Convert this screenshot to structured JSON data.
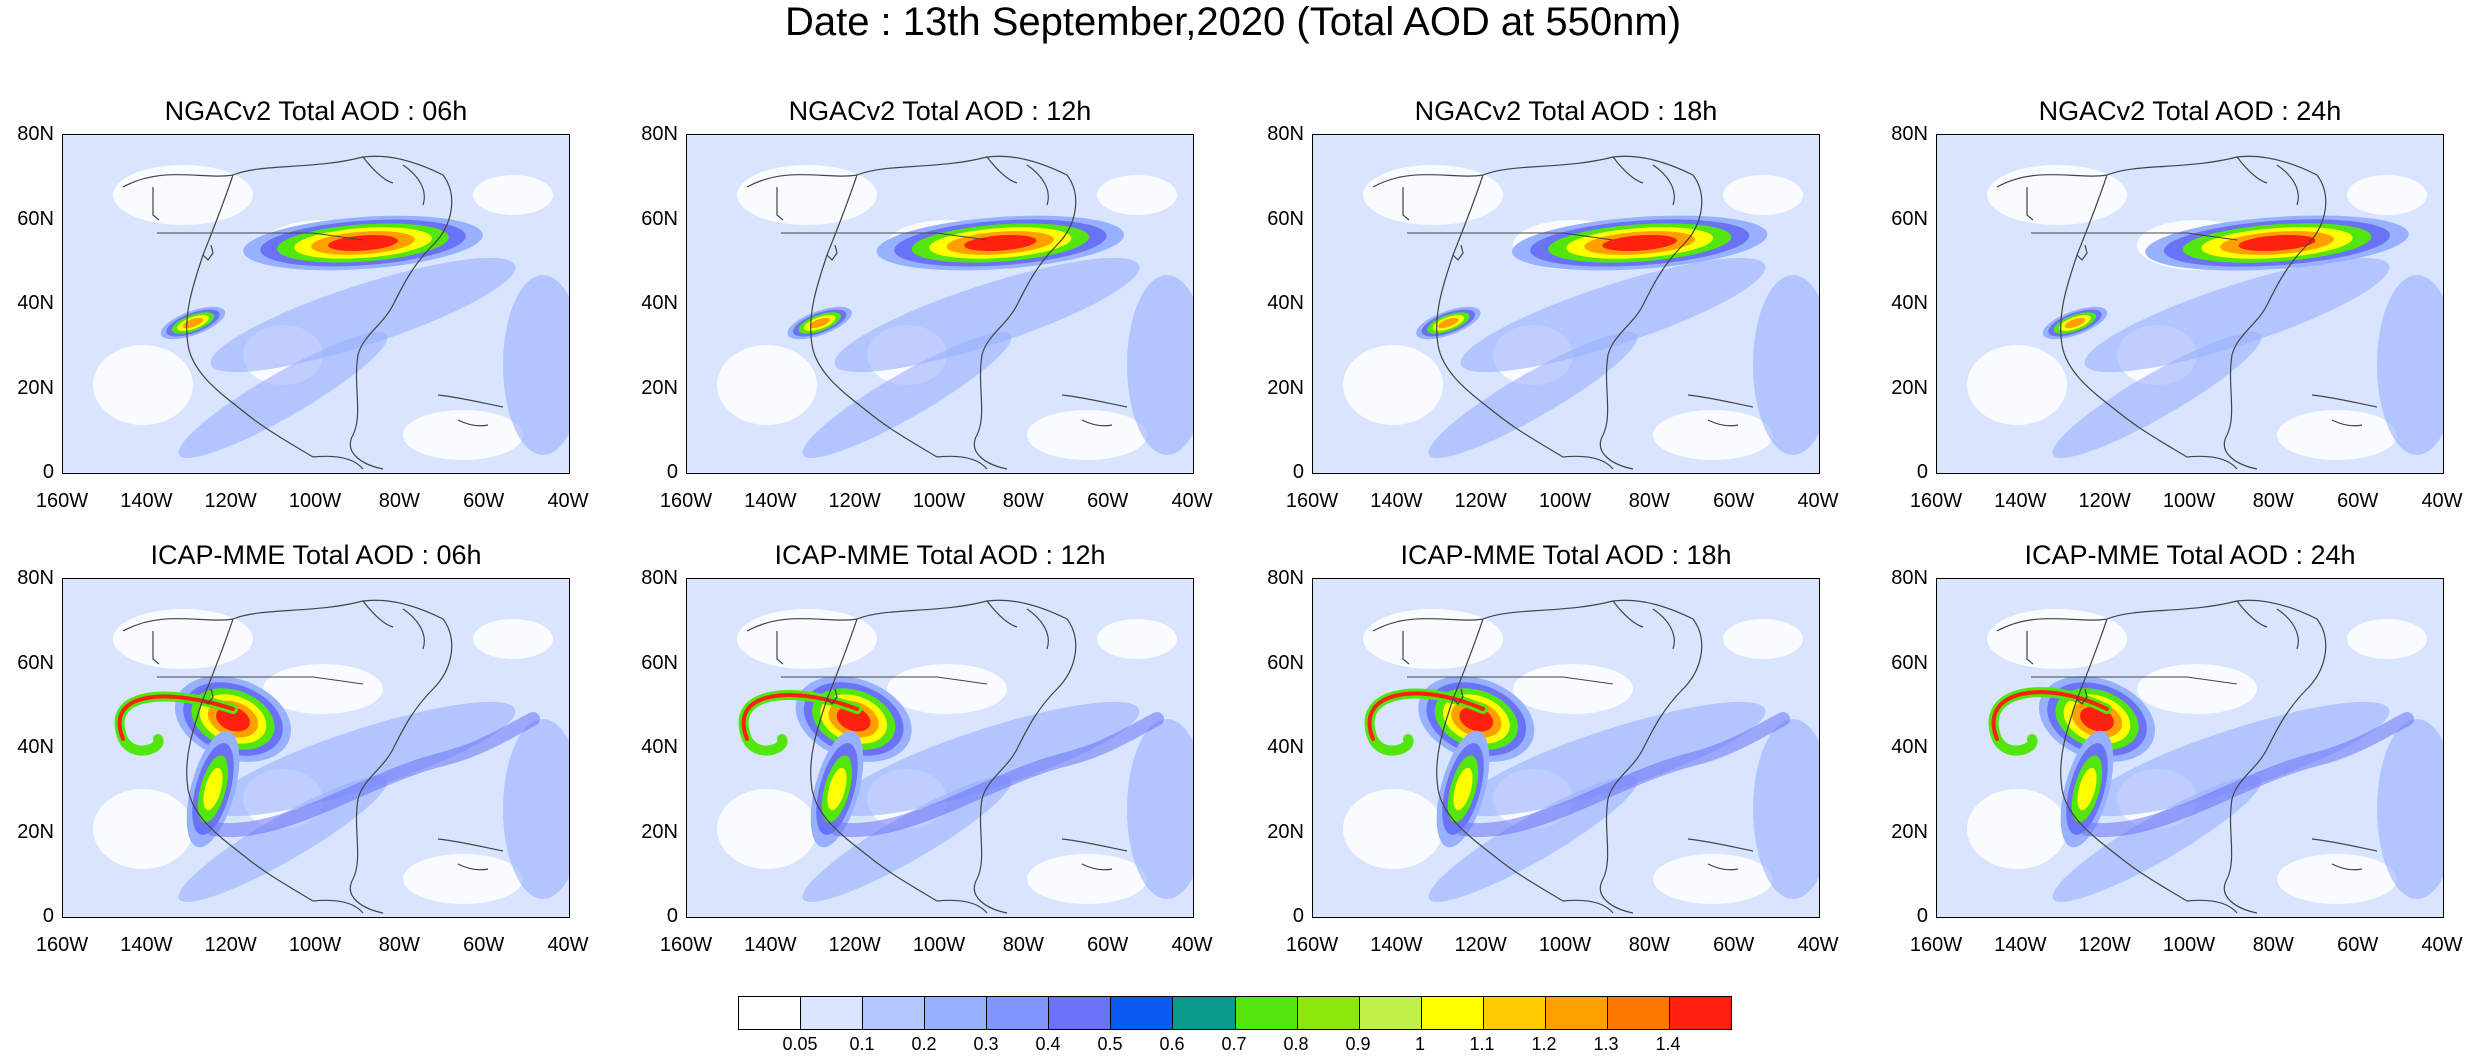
{
  "title": "Date : 13th September,2020 (Total AOD at 550nm)",
  "lat_labels": [
    "80N",
    "60N",
    "40N",
    "20N",
    "0"
  ],
  "lon_labels": [
    "160W",
    "140W",
    "120W",
    "100W",
    "80W",
    "60W",
    "40W"
  ],
  "panels": [
    {
      "title": "NGACv2 Total AOD : 06h",
      "model": "ngac",
      "hour": 6
    },
    {
      "title": "NGACv2 Total AOD : 12h",
      "model": "ngac",
      "hour": 12
    },
    {
      "title": "NGACv2 Total AOD : 18h",
      "model": "ngac",
      "hour": 18
    },
    {
      "title": "NGACv2 Total AOD : 24h",
      "model": "ngac",
      "hour": 24
    },
    {
      "title": "ICAP-MME Total AOD : 06h",
      "model": "icap",
      "hour": 6
    },
    {
      "title": "ICAP-MME Total AOD : 12h",
      "model": "icap",
      "hour": 12
    },
    {
      "title": "ICAP-MME Total AOD : 18h",
      "model": "icap",
      "hour": 18
    },
    {
      "title": "ICAP-MME Total AOD : 24h",
      "model": "icap",
      "hour": 24
    }
  ],
  "colorbar": {
    "labels": [
      "0.05",
      "0.1",
      "0.2",
      "0.3",
      "0.4",
      "0.5",
      "0.6",
      "0.7",
      "0.8",
      "0.9",
      "1",
      "1.1",
      "1.2",
      "1.3",
      "1.4"
    ],
    "colors": [
      "#ffffff",
      "#d9e4ff",
      "#b3c7ff",
      "#97b0ff",
      "#8096ff",
      "#6a73f5",
      "#0a5cf0",
      "#0a9a8c",
      "#52e60c",
      "#8ae80c",
      "#c2f04a",
      "#ffff00",
      "#ffcc00",
      "#ffa000",
      "#ff7800",
      "#ff2010"
    ]
  },
  "map_colors": {
    "land_outline": "#444444",
    "low": "#d9e4ff",
    "mid": "#97b0ff",
    "high": "#6a73f5",
    "green": "#52e60c",
    "yellow": "#ffff00",
    "orange": "#ffa000",
    "red": "#ff2010"
  }
}
